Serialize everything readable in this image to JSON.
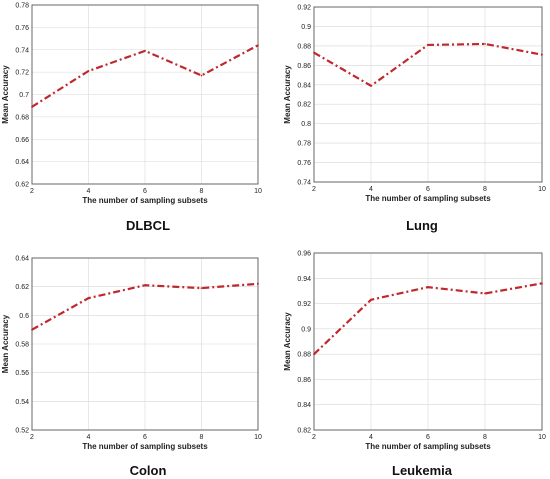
{
  "chart_data": [
    {
      "type": "line",
      "caption": "DLBCL",
      "xlabel": "The number of sampling subsets",
      "ylabel": "Mean Accuracy",
      "x": [
        2,
        4,
        6,
        8,
        10
      ],
      "series": [
        {
          "values": [
            0.689,
            0.721,
            0.739,
            0.717,
            0.744
          ]
        }
      ],
      "xticks": [
        "2",
        "4",
        "6",
        "8",
        "10"
      ],
      "yticks": [
        "0.62",
        "0.64",
        "0.66",
        "0.68",
        "0.7",
        "0.72",
        "0.74",
        "0.76",
        "0.78"
      ],
      "xlim": [
        2,
        10
      ],
      "ylim": [
        0.62,
        0.78
      ],
      "grid": true,
      "line_color": "#c0282d",
      "line_style": "dash-dot"
    },
    {
      "type": "line",
      "caption": "Lung",
      "xlabel": "The number of sampling subsets",
      "ylabel": "Mean Accuracy",
      "x": [
        2,
        4,
        6,
        8,
        10
      ],
      "series": [
        {
          "values": [
            0.873,
            0.839,
            0.881,
            0.882,
            0.871
          ]
        }
      ],
      "xticks": [
        "2",
        "4",
        "6",
        "8",
        "10"
      ],
      "yticks": [
        "0.74",
        "0.76",
        "0.78",
        "0.8",
        "0.82",
        "0.84",
        "0.86",
        "0.88",
        "0.9",
        "0.92"
      ],
      "xlim": [
        2,
        10
      ],
      "ylim": [
        0.74,
        0.92
      ],
      "grid": true,
      "line_color": "#c0282d",
      "line_style": "dash-dot"
    },
    {
      "type": "line",
      "caption": "Colon",
      "xlabel": "The number of sampling subsets",
      "ylabel": "Mean Accuracy",
      "x": [
        2,
        4,
        6,
        8,
        10
      ],
      "series": [
        {
          "values": [
            0.59,
            0.612,
            0.621,
            0.619,
            0.622
          ]
        }
      ],
      "xticks": [
        "2",
        "4",
        "6",
        "8",
        "10"
      ],
      "yticks": [
        "0.52",
        "0.54",
        "0.56",
        "0.58",
        "0.6",
        "0.62",
        "0.64"
      ],
      "xlim": [
        2,
        10
      ],
      "ylim": [
        0.52,
        0.64
      ],
      "grid": true,
      "line_color": "#c0282d",
      "line_style": "dash-dot"
    },
    {
      "type": "line",
      "caption": "Leukemia",
      "xlabel": "The number of sampling subsets",
      "ylabel": "Mean Accuracy",
      "x": [
        2,
        4,
        6,
        8,
        10
      ],
      "series": [
        {
          "values": [
            0.88,
            0.923,
            0.933,
            0.928,
            0.936
          ]
        }
      ],
      "xticks": [
        "2",
        "4",
        "6",
        "8",
        "10"
      ],
      "yticks": [
        "0.82",
        "0.84",
        "0.86",
        "0.88",
        "0.9",
        "0.92",
        "0.94",
        "0.96"
      ],
      "xlim": [
        2,
        10
      ],
      "ylim": [
        0.82,
        0.96
      ],
      "grid": true,
      "line_color": "#c0282d",
      "line_style": "dash-dot"
    }
  ]
}
